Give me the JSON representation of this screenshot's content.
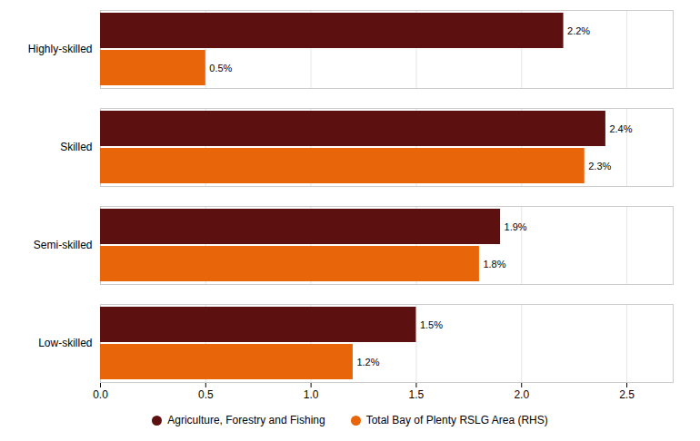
{
  "chart_data": {
    "type": "bar",
    "orientation": "horizontal",
    "categories": [
      "Highly-skilled",
      "Skilled",
      "Semi-skilled",
      "Low-skilled"
    ],
    "series": [
      {
        "name": "Agriculture, Forestry and Fishing",
        "color": "#5C1010",
        "values": [
          2.2,
          2.4,
          1.9,
          1.5
        ],
        "value_labels": [
          "2.2%",
          "2.4%",
          "1.9%",
          "1.5%"
        ]
      },
      {
        "name": "Total Bay of Plenty RSLG Area (RHS)",
        "color": "#E8650A",
        "values": [
          0.5,
          2.3,
          1.8,
          1.2
        ],
        "value_labels": [
          "0.5%",
          "2.3%",
          "1.8%",
          "1.2%"
        ]
      }
    ],
    "xlim": [
      0,
      2.72
    ],
    "xticks": [
      {
        "value": 0,
        "label": "0.0"
      },
      {
        "value": 0.5,
        "label": "0.5"
      },
      {
        "value": 1,
        "label": "1.0"
      },
      {
        "value": 1.5,
        "label": "1.5"
      },
      {
        "value": 2,
        "label": "2.0"
      },
      {
        "value": 2.5,
        "label": "2.5"
      }
    ],
    "grid": true,
    "data_labels": true,
    "legend": "bottom"
  }
}
